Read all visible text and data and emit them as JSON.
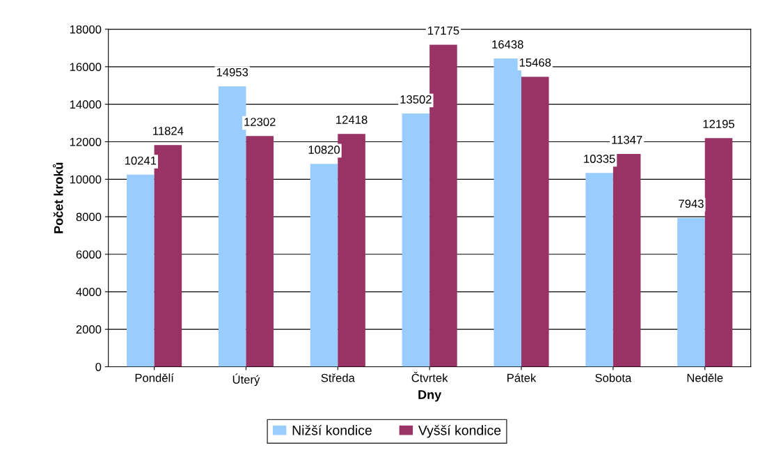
{
  "chart_data": {
    "type": "bar",
    "xlabel": "Dny",
    "ylabel": "Počet kroků",
    "categories": [
      "Pondělí",
      "Úterý",
      "Středa",
      "Čtvrtek",
      "Pátek",
      "Sobota",
      "Neděle"
    ],
    "series": [
      {
        "name": "Nižší kondice",
        "color": "#99ccff",
        "values": [
          10241,
          14953,
          10820,
          13502,
          16438,
          10335,
          7943
        ]
      },
      {
        "name": "Vyšší kondice",
        "color": "#993366",
        "values": [
          11824,
          12302,
          12418,
          17175,
          15468,
          11347,
          12195
        ]
      }
    ],
    "ylim": [
      0,
      18000
    ],
    "yticks": [
      0,
      2000,
      4000,
      6000,
      8000,
      10000,
      12000,
      14000,
      16000,
      18000
    ],
    "grid": "y",
    "legend": "bottom",
    "data_labels": true
  }
}
